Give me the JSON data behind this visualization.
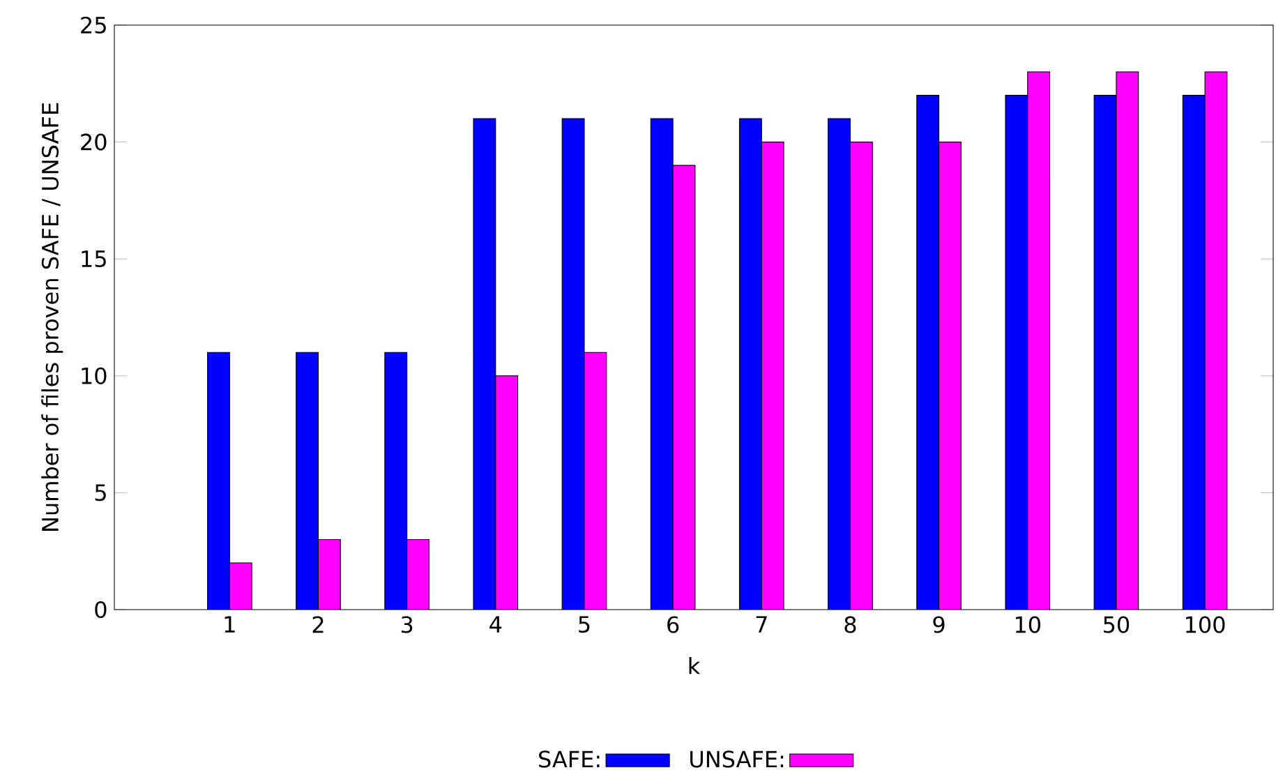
{
  "chart_data": {
    "type": "bar",
    "xlabel": "k",
    "ylabel": "Number of files proven SAFE / UNSAFE",
    "categories": [
      "1",
      "2",
      "3",
      "4",
      "5",
      "6",
      "7",
      "8",
      "9",
      "10",
      "50",
      "100"
    ],
    "series": [
      {
        "name": "SAFE:",
        "color": "#0000ff",
        "values": [
          11,
          11,
          11,
          21,
          21,
          21,
          21,
          21,
          22,
          22,
          22,
          22
        ]
      },
      {
        "name": "UNSAFE:",
        "color": "#ff00ff",
        "values": [
          2,
          3,
          3,
          10,
          11,
          19,
          20,
          20,
          20,
          23,
          23,
          23
        ]
      }
    ],
    "ylim": [
      0,
      25
    ],
    "yticks": [
      0,
      5,
      10,
      15,
      20,
      25
    ],
    "legend": "bottom"
  }
}
